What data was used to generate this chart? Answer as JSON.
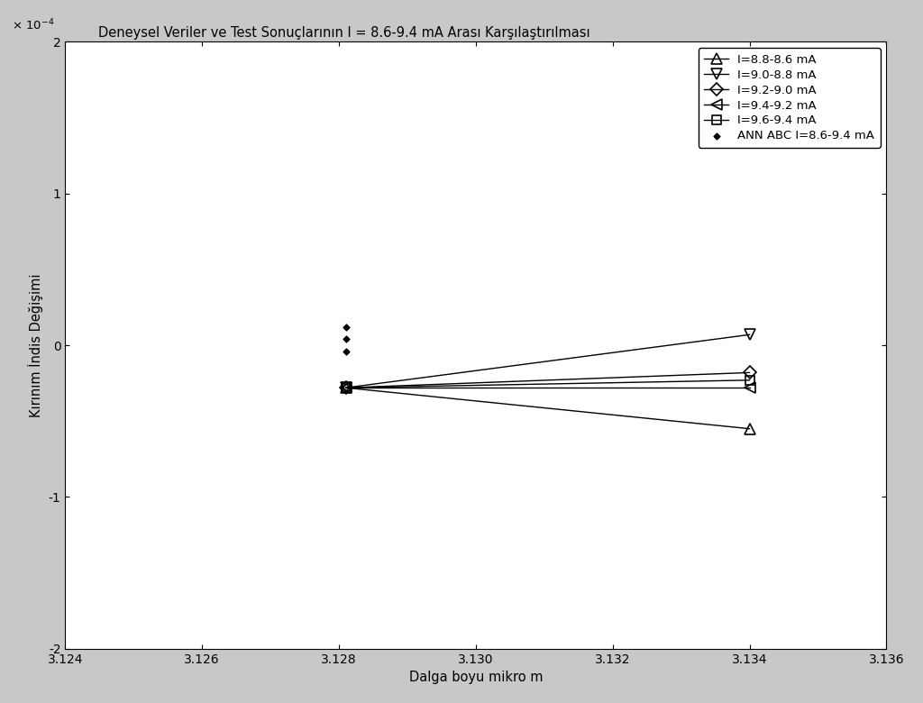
{
  "title": "Deneysel Veriler ve Test Sonuçlarının I = 8.6-9.4 mA Arası Karşılaştırılması",
  "xlabel": "Dalga boyu mikro m",
  "ylabel": "Kırınım İndis Değişimi",
  "xlim": [
    3.124,
    3.136
  ],
  "ylim": [
    -0.0002,
    0.0002
  ],
  "xticks": [
    3.124,
    3.126,
    3.128,
    3.13,
    3.132,
    3.134,
    3.136
  ],
  "yticks": [
    -0.0002,
    -0.0001,
    0.0,
    0.0001,
    0.0002
  ],
  "yticklabels": [
    "-2",
    "-1",
    "0",
    "1",
    "2"
  ],
  "series": [
    {
      "label": "I=8.8-8.6 mA",
      "x": [
        3.1281,
        3.134
      ],
      "y": [
        -2.8e-05,
        -5.5e-05
      ],
      "marker": "^",
      "markersize": 8
    },
    {
      "label": "I=9.0-8.8 mA",
      "x": [
        3.1281,
        3.134
      ],
      "y": [
        -2.8e-05,
        7e-06
      ],
      "marker": "v",
      "markersize": 8
    },
    {
      "label": "I=9.2-9.0 mA",
      "x": [
        3.1281,
        3.134
      ],
      "y": [
        -2.8e-05,
        -1.8e-05
      ],
      "marker": "D",
      "markersize": 7
    },
    {
      "label": "I=9.4-9.2 mA",
      "x": [
        3.1281,
        3.134
      ],
      "y": [
        -2.8e-05,
        -2.8e-05
      ],
      "marker": "<",
      "markersize": 8
    },
    {
      "label": "I=9.6-9.4 mA",
      "x": [
        3.1281,
        3.134
      ],
      "y": [
        -2.8e-05,
        -2.3e-05
      ],
      "marker": "s",
      "markersize": 7
    }
  ],
  "ann_points": {
    "label": "ANN ABC I=8.6-9.4 mA",
    "x": [
      3.1281,
      3.1281,
      3.1281
    ],
    "y": [
      1.2e-05,
      4e-06,
      -4e-06
    ],
    "marker": "D",
    "markersize": 3.5
  },
  "background_color": "#c8c8c8",
  "plot_bg_color": "#ffffff",
  "title_fontsize": 10.5,
  "axis_label_fontsize": 10.5,
  "tick_fontsize": 10,
  "legend_fontsize": 9.5
}
